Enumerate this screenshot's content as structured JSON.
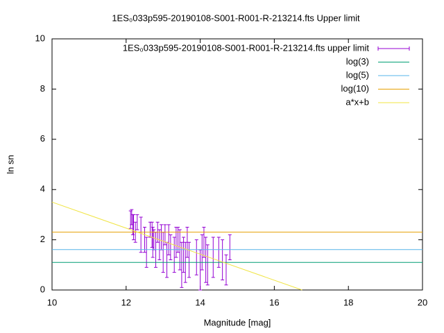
{
  "chart_data": {
    "type": "line",
    "title": "1ES₀033p595-20190108-S001-R001-R-213214.fts Upper limit",
    "x_label": "Magnitude [mag]",
    "y_label": "ln sn",
    "xlim": [
      10,
      20
    ],
    "ylim": [
      0,
      10
    ],
    "xticks": [
      10,
      12,
      14,
      16,
      18,
      20
    ],
    "yticks": [
      0,
      2,
      4,
      6,
      8,
      10
    ],
    "grid": false,
    "legend": "top-right",
    "series": [
      {
        "name": "1ES₀033p595-20190108-S001-R001-R-213214.fts upper limit",
        "color": "#9400d3",
        "style": "errorbars",
        "x": [
          12.12,
          12.15,
          12.18,
          12.2,
          12.25,
          12.3,
          12.4,
          12.5,
          12.55,
          12.65,
          12.7,
          12.72,
          12.75,
          12.8,
          12.85,
          12.9,
          12.95,
          13.0,
          13.05,
          13.1,
          13.15,
          13.2,
          13.3,
          13.35,
          13.4,
          13.45,
          13.5,
          13.55,
          13.6,
          13.65,
          13.7,
          13.9,
          14.0,
          14.05,
          14.1,
          14.15,
          14.2,
          14.35,
          14.5,
          14.6,
          14.7,
          14.8
        ],
        "values": [
          2.8,
          2.9,
          2.6,
          2.5,
          2.3,
          2.7,
          2.2,
          2.0,
          1.5,
          2.4,
          2.2,
          1.9,
          2.0,
          1.6,
          2.3,
          1.8,
          2.1,
          1.5,
          2.2,
          1.2,
          2.0,
          1.7,
          1.4,
          1.9,
          2.0,
          1.6,
          1.0,
          1.4,
          1.1,
          1.9,
          1.2,
          1.3,
          0.8,
          1.5,
          1.9,
          1.2,
          1.0,
          1.3,
          1.5,
          1.2,
          0.8,
          1.7
        ],
        "errors": [
          0.35,
          0.3,
          0.4,
          0.5,
          0.4,
          0.3,
          0.7,
          0.5,
          0.6,
          0.3,
          0.5,
          0.6,
          0.4,
          0.7,
          0.4,
          0.6,
          0.5,
          0.8,
          0.4,
          0.7,
          0.6,
          0.5,
          0.7,
          0.6,
          0.5,
          0.8,
          0.9,
          0.7,
          0.8,
          0.6,
          0.7,
          0.7,
          0.8,
          0.7,
          0.6,
          0.9,
          0.8,
          0.8,
          0.6,
          0.8,
          0.6,
          0.5
        ]
      },
      {
        "name": "log(3)",
        "color": "#009e73",
        "style": "line",
        "x": [
          10,
          20
        ],
        "values": [
          1.0986,
          1.0986
        ]
      },
      {
        "name": "log(5)",
        "color": "#56b4e9",
        "style": "line",
        "x": [
          10,
          20
        ],
        "values": [
          1.6094,
          1.6094
        ]
      },
      {
        "name": "log(10)",
        "color": "#e69f00",
        "style": "line",
        "x": [
          10,
          20
        ],
        "values": [
          2.3026,
          2.3026
        ]
      },
      {
        "name": "a*x+b",
        "color": "#f0e442",
        "style": "line",
        "x": [
          10,
          16.75
        ],
        "values": [
          3.5,
          0
        ]
      }
    ]
  }
}
